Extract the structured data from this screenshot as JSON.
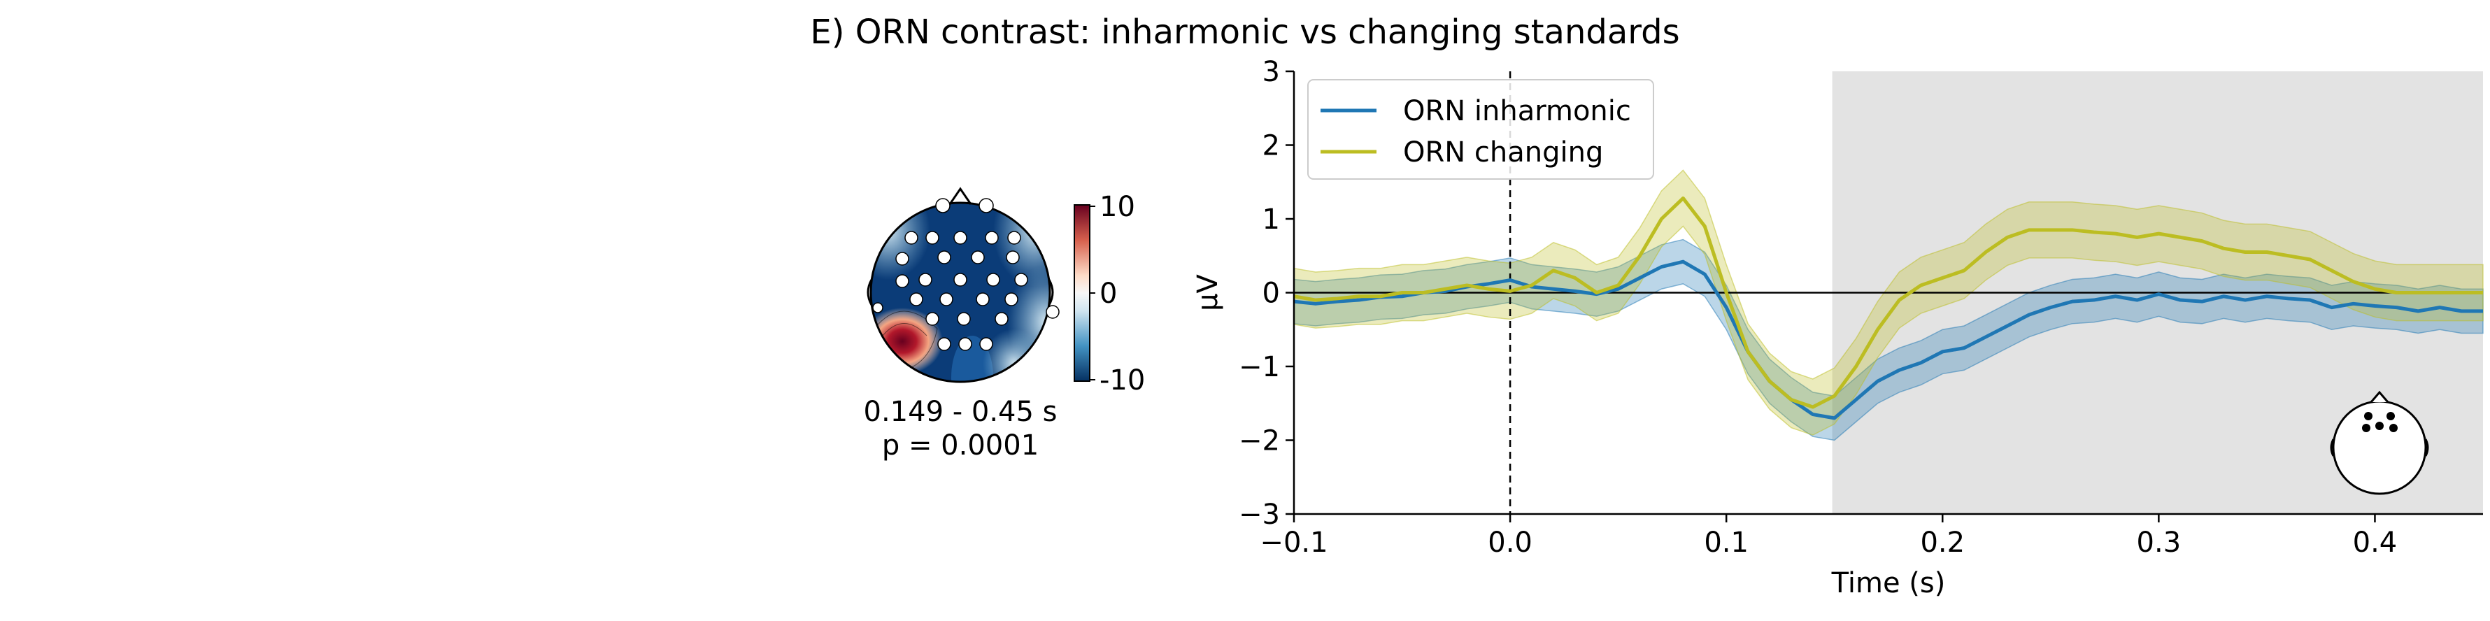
{
  "title": "E) ORN contrast: inharmonic vs changing standards",
  "topomap": {
    "time_window": "0.149 - 0.45 s",
    "p_value": "p = 0.0001",
    "colorbar": {
      "ticks": [
        "10",
        "0",
        "-10"
      ],
      "max": 10,
      "min": -10,
      "cmap": "RdBu_r"
    }
  },
  "chart_data": {
    "type": "line",
    "xlabel": "Time (s)",
    "ylabel": "µV",
    "xlim": [
      -0.1,
      0.45
    ],
    "ylim": [
      -3,
      3
    ],
    "xticks": [
      -0.1,
      0.0,
      0.1,
      0.2,
      0.3,
      0.4
    ],
    "xtick_labels": [
      "−0.1",
      "0.0",
      "0.1",
      "0.2",
      "0.3",
      "0.4"
    ],
    "yticks": [
      3,
      2,
      1,
      0,
      -1,
      -2,
      -3
    ],
    "ytick_labels": [
      "3",
      "2",
      "1",
      "0",
      "−1",
      "−2",
      "−3"
    ],
    "stimulus_onset_line": 0.0,
    "significant_window": [
      0.149,
      0.45
    ],
    "legend_location": "upper-left",
    "series": [
      {
        "name": "ORN inharmonic",
        "color": "#1f77b4",
        "x": [
          -0.1,
          -0.09,
          -0.08,
          -0.07,
          -0.06,
          -0.05,
          -0.04,
          -0.03,
          -0.02,
          -0.01,
          0.0,
          0.01,
          0.02,
          0.03,
          0.04,
          0.05,
          0.06,
          0.07,
          0.08,
          0.09,
          0.1,
          0.11,
          0.12,
          0.13,
          0.14,
          0.15,
          0.16,
          0.17,
          0.18,
          0.19,
          0.2,
          0.21,
          0.22,
          0.23,
          0.24,
          0.25,
          0.26,
          0.27,
          0.28,
          0.29,
          0.3,
          0.31,
          0.32,
          0.33,
          0.34,
          0.35,
          0.36,
          0.37,
          0.38,
          0.39,
          0.4,
          0.41,
          0.42,
          0.43,
          0.44,
          0.45
        ],
        "y": [
          -0.12,
          -0.15,
          -0.12,
          -0.1,
          -0.06,
          -0.05,
          0.0,
          0.02,
          0.08,
          0.12,
          0.17,
          0.08,
          0.05,
          0.02,
          -0.02,
          0.05,
          0.2,
          0.35,
          0.42,
          0.25,
          -0.2,
          -0.8,
          -1.2,
          -1.45,
          -1.65,
          -1.7,
          -1.45,
          -1.2,
          -1.05,
          -0.95,
          -0.8,
          -0.75,
          -0.6,
          -0.45,
          -0.3,
          -0.2,
          -0.12,
          -0.1,
          -0.05,
          -0.1,
          -0.02,
          -0.1,
          -0.12,
          -0.05,
          -0.1,
          -0.05,
          -0.08,
          -0.1,
          -0.2,
          -0.15,
          -0.18,
          -0.2,
          -0.25,
          -0.2,
          -0.25,
          -0.25
        ],
        "ci_halfwidth": 0.3
      },
      {
        "name": "ORN changing",
        "color": "#bcbd22",
        "x": [
          -0.1,
          -0.09,
          -0.08,
          -0.07,
          -0.06,
          -0.05,
          -0.04,
          -0.03,
          -0.02,
          -0.01,
          0.0,
          0.01,
          0.02,
          0.03,
          0.04,
          0.05,
          0.06,
          0.07,
          0.08,
          0.09,
          0.1,
          0.11,
          0.12,
          0.13,
          0.14,
          0.15,
          0.16,
          0.17,
          0.18,
          0.19,
          0.2,
          0.21,
          0.22,
          0.23,
          0.24,
          0.25,
          0.26,
          0.27,
          0.28,
          0.29,
          0.3,
          0.31,
          0.32,
          0.33,
          0.34,
          0.35,
          0.36,
          0.37,
          0.38,
          0.39,
          0.4,
          0.41,
          0.42,
          0.43,
          0.44,
          0.45
        ],
        "y": [
          -0.05,
          -0.1,
          -0.08,
          -0.05,
          -0.05,
          0.0,
          0.0,
          0.05,
          0.1,
          0.05,
          0.02,
          0.1,
          0.3,
          0.2,
          0.0,
          0.1,
          0.5,
          1.0,
          1.28,
          0.9,
          0.0,
          -0.8,
          -1.2,
          -1.45,
          -1.55,
          -1.4,
          -1.0,
          -0.5,
          -0.1,
          0.1,
          0.2,
          0.3,
          0.55,
          0.75,
          0.85,
          0.85,
          0.85,
          0.82,
          0.8,
          0.75,
          0.8,
          0.75,
          0.7,
          0.6,
          0.55,
          0.55,
          0.5,
          0.45,
          0.3,
          0.15,
          0.05,
          0.0,
          0.0,
          0.0,
          0.0,
          0.0
        ],
        "ci_halfwidth": 0.38
      }
    ]
  }
}
